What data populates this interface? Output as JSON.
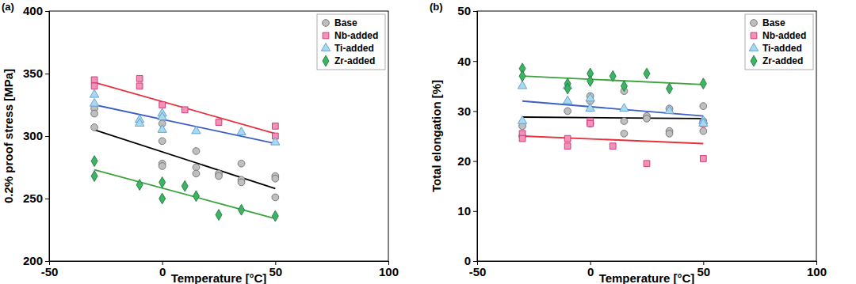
{
  "chart_data": [
    {
      "type": "scatter",
      "panel_label": "(a)",
      "x_label": "Temperature [°C]",
      "y_label": "0.2% proof stress [MPa]",
      "xlim": [
        -50,
        100
      ],
      "xticks": [
        -50,
        0,
        50,
        100
      ],
      "ylim": [
        200,
        400
      ],
      "yticks": [
        200,
        250,
        300,
        350,
        400
      ],
      "grid": false,
      "legend": "top-right",
      "series": [
        {
          "name": "Base",
          "color": "#bfbfbf",
          "marker": "circle",
          "x": [
            -30,
            -30,
            -30,
            0,
            0,
            0,
            0,
            15,
            15,
            15,
            25,
            25,
            35,
            35,
            35,
            50,
            50,
            50
          ],
          "values": [
            322,
            318,
            307,
            310,
            296,
            278,
            276,
            288,
            275,
            270,
            270,
            268,
            278,
            265,
            263,
            268,
            266,
            251
          ],
          "trend_x": [
            -30,
            50
          ],
          "trend": [
            305,
            258
          ]
        },
        {
          "name": "Nb-added",
          "color": "#f391b9",
          "marker": "square",
          "x": [
            -30,
            -30,
            -10,
            -10,
            0,
            10,
            25,
            50,
            50
          ],
          "values": [
            345,
            340,
            346,
            340,
            325,
            321,
            311,
            308,
            300
          ],
          "trend_x": [
            -30,
            50
          ],
          "trend": [
            343,
            302
          ]
        },
        {
          "name": "Ti-added",
          "color": "#a9d9ef",
          "marker": "triangle",
          "x": [
            -30,
            -30,
            -10,
            -10,
            0,
            0,
            0,
            15,
            35,
            50
          ],
          "values": [
            333,
            326,
            313,
            310,
            318,
            315,
            305,
            304,
            303,
            295
          ],
          "trend_x": [
            -30,
            50
          ],
          "trend": [
            325,
            294
          ]
        },
        {
          "name": "Zr-added",
          "color": "#3cb464",
          "marker": "diamond",
          "x": [
            -30,
            -30,
            -10,
            0,
            0,
            10,
            15,
            25,
            35,
            50
          ],
          "values": [
            280,
            268,
            261,
            263,
            250,
            260,
            252,
            237,
            241,
            236
          ],
          "trend_x": [
            -30,
            50
          ],
          "trend": [
            273,
            234
          ]
        }
      ]
    },
    {
      "type": "scatter",
      "panel_label": "(b)",
      "x_label": "Temperature [°C]",
      "y_label": "Total elongation [%]",
      "xlim": [
        -50,
        100
      ],
      "xticks": [
        -50,
        0,
        50,
        100
      ],
      "ylim": [
        0,
        50
      ],
      "yticks": [
        0,
        10,
        20,
        30,
        40,
        50
      ],
      "grid": false,
      "legend": "top-right",
      "series": [
        {
          "name": "Base",
          "color": "#bfbfbf",
          "marker": "circle",
          "x": [
            -30,
            -30,
            -10,
            0,
            0,
            0,
            15,
            15,
            15,
            25,
            25,
            35,
            35,
            35,
            50,
            50,
            50
          ],
          "values": [
            27,
            25,
            30,
            33,
            32,
            27.5,
            34,
            28,
            25.5,
            29,
            28.5,
            30.5,
            26,
            25.5,
            31,
            28,
            26
          ],
          "trend_x": [
            -30,
            50
          ],
          "trend": [
            28.8,
            28.5
          ]
        },
        {
          "name": "Nb-added",
          "color": "#f391b9",
          "marker": "square",
          "x": [
            -30,
            -30,
            -10,
            -10,
            0,
            0,
            10,
            25,
            50,
            50
          ],
          "values": [
            25.5,
            24.5,
            24.5,
            23,
            28,
            27.5,
            23,
            19.5,
            27.5,
            20.5
          ],
          "trend_x": [
            -30,
            50
          ],
          "trend": [
            25,
            23.5
          ]
        },
        {
          "name": "Ti-added",
          "color": "#a9d9ef",
          "marker": "triangle",
          "x": [
            -30,
            -30,
            -10,
            -10,
            0,
            0,
            15,
            35,
            50,
            50
          ],
          "values": [
            35,
            28,
            35,
            32,
            32.5,
            30.5,
            30.5,
            30,
            28,
            27.5
          ],
          "trend_x": [
            -30,
            50
          ],
          "trend": [
            32,
            29
          ]
        },
        {
          "name": "Zr-added",
          "color": "#3cb464",
          "marker": "diamond",
          "x": [
            -30,
            -30,
            -10,
            -10,
            0,
            0,
            10,
            15,
            25,
            35,
            50
          ],
          "values": [
            38.5,
            37,
            35.5,
            34.5,
            37.5,
            36,
            37,
            35,
            37.5,
            34.5,
            35.5
          ],
          "trend_x": [
            -30,
            50
          ],
          "trend": [
            37,
            35.3
          ]
        }
      ]
    }
  ]
}
